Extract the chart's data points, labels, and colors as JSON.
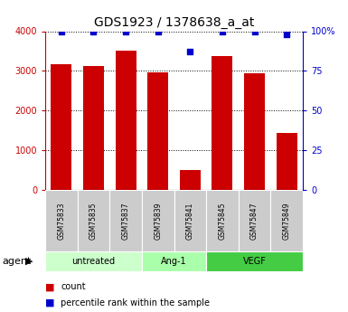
{
  "title": "GDS1923 / 1378638_a_at",
  "samples": [
    "GSM75833",
    "GSM75835",
    "GSM75837",
    "GSM75839",
    "GSM75841",
    "GSM75845",
    "GSM75847",
    "GSM75849"
  ],
  "counts": [
    3175,
    3125,
    3500,
    2975,
    500,
    3375,
    2950,
    1450
  ],
  "percentiles": [
    100,
    100,
    100,
    100,
    87,
    100,
    100,
    98
  ],
  "bar_color": "#cc0000",
  "dot_color": "#0000cc",
  "ylim_left": [
    0,
    4000
  ],
  "ylim_right": [
    0,
    100
  ],
  "yticks_left": [
    0,
    1000,
    2000,
    3000,
    4000
  ],
  "yticks_right": [
    0,
    25,
    50,
    75,
    100
  ],
  "groups": [
    {
      "label": "untreated",
      "start": 0,
      "end": 3,
      "color": "#ccffcc"
    },
    {
      "label": "Ang-1",
      "start": 3,
      "end": 5,
      "color": "#aaffaa"
    },
    {
      "label": "VEGF",
      "start": 5,
      "end": 8,
      "color": "#44cc44"
    }
  ],
  "agent_label": "agent",
  "legend_count_label": "count",
  "legend_pct_label": "percentile rank within the sample",
  "bg_color": "#ffffff",
  "tick_label_color_left": "#cc0000",
  "tick_label_color_right": "#0000cc",
  "grid_color": "#000000",
  "sample_bg_color": "#cccccc",
  "title_fontsize": 10,
  "tick_fontsize": 7,
  "sample_fontsize": 5.5,
  "group_fontsize": 7,
  "legend_fontsize": 7
}
